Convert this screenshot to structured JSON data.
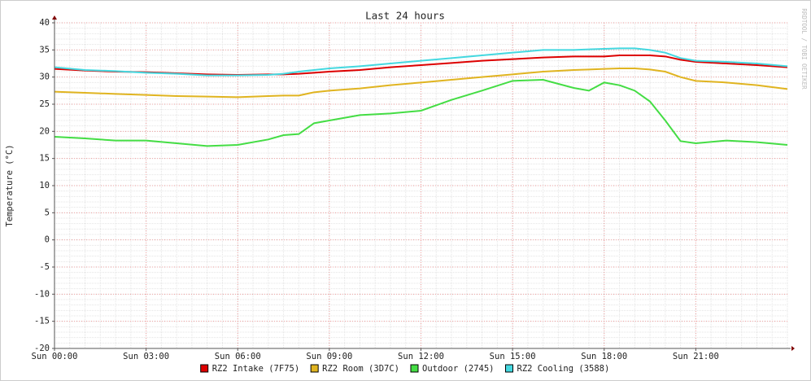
{
  "chart_data": {
    "type": "line",
    "title": "Last 24 hours",
    "y_label": "Temperature (°C)",
    "side_label": "RRDTOOL / TOBI OETIKER",
    "x": [
      0,
      1,
      2,
      3,
      4,
      5,
      6,
      7,
      7.5,
      8,
      8.5,
      9,
      10,
      11,
      12,
      13,
      14,
      15,
      16,
      17,
      17.5,
      18,
      18.5,
      19,
      19.5,
      20,
      20.5,
      21,
      22,
      23,
      24
    ],
    "xlim": [
      0,
      24
    ],
    "xticks": [
      {
        "value": 0,
        "label": "Sun 00:00"
      },
      {
        "value": 3,
        "label": "Sun 03:00"
      },
      {
        "value": 6,
        "label": "Sun 06:00"
      },
      {
        "value": 9,
        "label": "Sun 09:00"
      },
      {
        "value": 12,
        "label": "Sun 12:00"
      },
      {
        "value": 15,
        "label": "Sun 15:00"
      },
      {
        "value": 18,
        "label": "Sun 18:00"
      },
      {
        "value": 21,
        "label": "Sun 21:00"
      }
    ],
    "ylim": [
      -20,
      40
    ],
    "yticks": [
      -20,
      -15,
      -10,
      -5,
      0,
      5,
      10,
      15,
      20,
      25,
      30,
      35,
      40
    ],
    "grid": true,
    "series": [
      {
        "name": "RZ2 Intake (7F75)",
        "color": "#dd0000",
        "values": [
          31.5,
          31.2,
          31,
          30.9,
          30.7,
          30.5,
          30.4,
          30.5,
          30.5,
          30.6,
          30.8,
          31,
          31.3,
          31.8,
          32.2,
          32.6,
          33,
          33.3,
          33.6,
          33.8,
          33.8,
          33.8,
          34,
          34,
          34,
          33.8,
          33.2,
          32.8,
          32.5,
          32.2,
          31.8
        ]
      },
      {
        "name": "RZ2 Room (3D7C)",
        "color": "#e0b420",
        "values": [
          27.3,
          27.1,
          26.9,
          26.7,
          26.5,
          26.4,
          26.3,
          26.5,
          26.6,
          26.6,
          27.2,
          27.5,
          27.9,
          28.5,
          29,
          29.5,
          30,
          30.5,
          31,
          31.3,
          31.4,
          31.5,
          31.6,
          31.6,
          31.4,
          31,
          30,
          29.3,
          29,
          28.5,
          27.8
        ]
      },
      {
        "name": "Outdoor (2745)",
        "color": "#44dd44",
        "values": [
          19,
          18.7,
          18.3,
          18.3,
          17.8,
          17.3,
          17.5,
          18.5,
          19.3,
          19.5,
          21.5,
          22,
          23,
          23.3,
          23.8,
          25.8,
          27.5,
          29.3,
          29.5,
          28,
          27.5,
          29,
          28.5,
          27.5,
          25.5,
          22,
          18.2,
          17.8,
          18.3,
          18,
          17.5
        ]
      },
      {
        "name": "RZ2 Cooling (3588)",
        "color": "#44d8e0",
        "values": [
          31.8,
          31.3,
          31.1,
          30.8,
          30.6,
          30.3,
          30.3,
          30.4,
          30.6,
          31,
          31.3,
          31.6,
          32,
          32.5,
          33,
          33.5,
          34,
          34.5,
          35,
          35,
          35.1,
          35.2,
          35.3,
          35.3,
          35,
          34.5,
          33.5,
          33,
          32.8,
          32.5,
          32
        ]
      }
    ]
  }
}
